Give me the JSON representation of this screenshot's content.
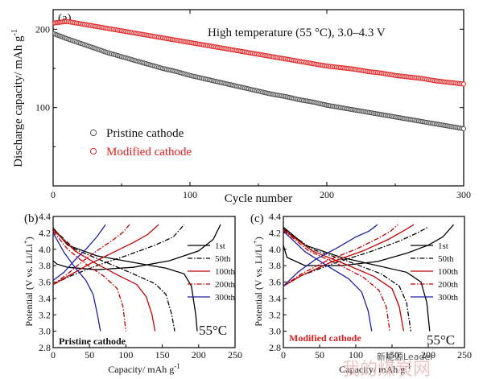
{
  "chart_data": [
    {
      "type": "scatter",
      "panel_label": "(a)",
      "annotation": "High temperature (55 °C), 3.0–4.3 V",
      "xlabel": "Cycle number",
      "ylabel": "Discharge capacity/ mAh g",
      "ylabel_sup": "-1",
      "xlim": [
        0,
        300
      ],
      "ylim": [
        0,
        225
      ],
      "xticks": [
        "0",
        "100",
        "200",
        "300"
      ],
      "yticks": [
        "100",
        "200"
      ],
      "legend_placement": "bottom-left",
      "series": [
        {
          "name": "Pristine cathode",
          "color": "#4a4a4a",
          "x": [
            1,
            10,
            20,
            30,
            40,
            50,
            60,
            70,
            80,
            90,
            100,
            110,
            120,
            130,
            140,
            150,
            160,
            170,
            180,
            190,
            200,
            210,
            220,
            230,
            240,
            250,
            260,
            270,
            280,
            290,
            300
          ],
          "y": [
            194,
            188,
            182,
            176,
            170,
            165,
            160,
            155,
            150,
            146,
            141,
            137,
            133,
            129,
            125,
            121,
            117,
            114,
            110,
            107,
            103,
            100,
            97,
            94,
            91,
            88,
            85,
            82,
            79,
            76,
            73
          ]
        },
        {
          "name": "Modified cathode",
          "color": "#e02020",
          "x": [
            1,
            10,
            20,
            30,
            40,
            50,
            60,
            70,
            80,
            90,
            100,
            110,
            120,
            130,
            140,
            150,
            160,
            170,
            180,
            190,
            200,
            210,
            220,
            230,
            240,
            250,
            260,
            270,
            280,
            290,
            300
          ],
          "y": [
            208,
            210,
            207,
            204,
            201,
            198,
            195,
            192,
            189,
            186,
            183,
            180,
            177,
            174,
            171,
            168,
            165,
            162,
            159,
            156,
            153,
            151,
            149,
            146,
            144,
            141,
            139,
            137,
            134,
            132,
            130
          ]
        }
      ]
    },
    {
      "type": "line",
      "panel_label": "(b)",
      "panel_note": "Pristine cathode",
      "temp_label": "55°C",
      "xlabel": "Capacity/ mAh g",
      "xlabel_sup": "-1",
      "ylabel": "Potential (V vs. Li/Li",
      "ylabel_sup": "+",
      "ylabel_end": ")",
      "xlim": [
        0,
        250
      ],
      "ylim": [
        2.8,
        4.4
      ],
      "xticks": [
        "0",
        "50",
        "100",
        "150",
        "200",
        "250"
      ],
      "yticks": [
        "2.8",
        "3.0",
        "3.2",
        "3.4",
        "3.6",
        "3.8",
        "4.0",
        "4.2",
        "4.4"
      ],
      "legend_placement": "top-right",
      "series": [
        {
          "name": "1st",
          "color": "#000000",
          "dash": "",
          "charge": [
            [
              0,
              3.86
            ],
            [
              5,
              3.82
            ],
            [
              20,
              3.78
            ],
            [
              60,
              3.75
            ],
            [
              110,
              3.78
            ],
            [
              160,
              3.86
            ],
            [
              200,
              3.98
            ],
            [
              220,
              4.12
            ],
            [
              230,
              4.3
            ]
          ],
          "discharge": [
            [
              0,
              4.26
            ],
            [
              20,
              4.05
            ],
            [
              60,
              3.92
            ],
            [
              110,
              3.84
            ],
            [
              155,
              3.77
            ],
            [
              180,
              3.7
            ],
            [
              190,
              3.55
            ],
            [
              196,
              3.2
            ],
            [
              198,
              3.0
            ]
          ]
        },
        {
          "name": "50th",
          "color": "#000000",
          "dash": "6,2,1.5,2",
          "charge": [
            [
              0,
              3.57
            ],
            [
              20,
              3.66
            ],
            [
              60,
              3.8
            ],
            [
              100,
              3.92
            ],
            [
              140,
              4.05
            ],
            [
              165,
              4.15
            ],
            [
              180,
              4.3
            ]
          ],
          "discharge": [
            [
              0,
              4.25
            ],
            [
              30,
              4.0
            ],
            [
              70,
              3.85
            ],
            [
              110,
              3.7
            ],
            [
              140,
              3.58
            ],
            [
              155,
              3.45
            ],
            [
              163,
              3.2
            ],
            [
              167,
              3.0
            ]
          ]
        },
        {
          "name": "100th",
          "color": "#c00000",
          "dash": "",
          "charge": [
            [
              0,
              3.57
            ],
            [
              20,
              3.67
            ],
            [
              50,
              3.82
            ],
            [
              80,
              3.95
            ],
            [
              110,
              4.08
            ],
            [
              130,
              4.18
            ],
            [
              145,
              4.3
            ]
          ],
          "discharge": [
            [
              0,
              4.24
            ],
            [
              30,
              3.98
            ],
            [
              60,
              3.82
            ],
            [
              90,
              3.68
            ],
            [
              115,
              3.57
            ],
            [
              128,
              3.42
            ],
            [
              136,
              3.2
            ],
            [
              140,
              3.0
            ]
          ]
        },
        {
          "name": "200th",
          "color": "#c00000",
          "dash": "6,2,1.5,2",
          "charge": [
            [
              0,
              3.57
            ],
            [
              20,
              3.7
            ],
            [
              40,
              3.85
            ],
            [
              60,
              3.98
            ],
            [
              80,
              4.1
            ],
            [
              95,
              4.2
            ],
            [
              105,
              4.3
            ]
          ],
          "discharge": [
            [
              0,
              4.22
            ],
            [
              20,
              4.0
            ],
            [
              45,
              3.82
            ],
            [
              70,
              3.67
            ],
            [
              88,
              3.52
            ],
            [
              96,
              3.3
            ],
            [
              100,
              3.0
            ]
          ]
        },
        {
          "name": "300th",
          "color": "#2020a0",
          "dash": "",
          "charge": [
            [
              0,
              3.62
            ],
            [
              15,
              3.72
            ],
            [
              30,
              3.87
            ],
            [
              45,
              4.0
            ],
            [
              60,
              4.15
            ],
            [
              72,
              4.3
            ]
          ],
          "discharge": [
            [
              0,
              4.2
            ],
            [
              15,
              3.96
            ],
            [
              30,
              3.78
            ],
            [
              45,
              3.62
            ],
            [
              55,
              3.45
            ],
            [
              61,
              3.2
            ],
            [
              65,
              3.0
            ]
          ]
        }
      ]
    },
    {
      "type": "line",
      "panel_label": "(c)",
      "panel_note": "Modified cathode",
      "temp_label": "55°C",
      "xlabel": "Capacity/ mAh g",
      "xlabel_sup": "-1",
      "ylabel": "Potential (V vs. Li/Li",
      "ylabel_sup": "+",
      "ylabel_end": ")",
      "xlim": [
        0,
        250
      ],
      "ylim": [
        2.8,
        4.4
      ],
      "xticks": [
        "0",
        "50",
        "100",
        "150",
        "200",
        "250"
      ],
      "yticks": [
        "2.8",
        "3.0",
        "3.2",
        "3.4",
        "3.6",
        "3.8",
        "4.0",
        "4.2",
        "4.4"
      ],
      "legend_placement": "top-right",
      "series": [
        {
          "name": "1st",
          "color": "#000000",
          "dash": "",
          "charge": [
            [
              0,
              4.05
            ],
            [
              5,
              3.9
            ],
            [
              30,
              3.8
            ],
            [
              80,
              3.8
            ],
            [
              130,
              3.85
            ],
            [
              170,
              3.95
            ],
            [
              200,
              4.05
            ],
            [
              220,
              4.15
            ],
            [
              235,
              4.3
            ]
          ],
          "discharge": [
            [
              0,
              4.27
            ],
            [
              30,
              4.05
            ],
            [
              80,
              3.9
            ],
            [
              130,
              3.8
            ],
            [
              170,
              3.72
            ],
            [
              190,
              3.6
            ],
            [
              198,
              3.35
            ],
            [
              202,
              3.0
            ]
          ]
        },
        {
          "name": "50th",
          "color": "#000000",
          "dash": "6,2,1.5,2",
          "charge": [
            [
              0,
              3.55
            ],
            [
              25,
              3.68
            ],
            [
              70,
              3.83
            ],
            [
              120,
              3.97
            ],
            [
              160,
              4.1
            ],
            [
              185,
              4.2
            ],
            [
              200,
              4.27
            ]
          ],
          "discharge": [
            [
              0,
              4.25
            ],
            [
              40,
              4.0
            ],
            [
              90,
              3.85
            ],
            [
              135,
              3.7
            ],
            [
              160,
              3.55
            ],
            [
              170,
              3.35
            ],
            [
              176,
              3.0
            ]
          ]
        },
        {
          "name": "100th",
          "color": "#c00000",
          "dash": "",
          "charge": [
            [
              0,
              3.55
            ],
            [
              25,
              3.68
            ],
            [
              65,
              3.84
            ],
            [
              110,
              3.98
            ],
            [
              145,
              4.12
            ],
            [
              165,
              4.22
            ],
            [
              180,
              4.3
            ]
          ],
          "discharge": [
            [
              0,
              4.24
            ],
            [
              40,
              3.98
            ],
            [
              85,
              3.82
            ],
            [
              125,
              3.67
            ],
            [
              150,
              3.52
            ],
            [
              160,
              3.3
            ],
            [
              166,
              3.0
            ]
          ]
        },
        {
          "name": "200th",
          "color": "#c00000",
          "dash": "6,2,1.5,2",
          "charge": [
            [
              0,
              3.55
            ],
            [
              25,
              3.7
            ],
            [
              60,
              3.86
            ],
            [
              100,
              4.0
            ],
            [
              130,
              4.13
            ],
            [
              148,
              4.22
            ],
            [
              158,
              4.3
            ]
          ],
          "discharge": [
            [
              0,
              4.23
            ],
            [
              35,
              3.98
            ],
            [
              75,
              3.82
            ],
            [
              110,
              3.66
            ],
            [
              132,
              3.5
            ],
            [
              142,
              3.3
            ],
            [
              147,
              3.0
            ]
          ]
        },
        {
          "name": "300th",
          "color": "#2020a0",
          "dash": "",
          "charge": [
            [
              0,
              3.55
            ],
            [
              20,
              3.72
            ],
            [
              45,
              3.88
            ],
            [
              75,
              4.02
            ],
            [
              100,
              4.15
            ],
            [
              118,
              4.22
            ],
            [
              130,
              4.3
            ]
          ],
          "discharge": [
            [
              0,
              4.22
            ],
            [
              30,
              3.97
            ],
            [
              60,
              3.8
            ],
            [
              90,
              3.64
            ],
            [
              108,
              3.48
            ],
            [
              117,
              3.25
            ],
            [
              122,
              3.0
            ]
          ]
        }
      ]
    }
  ],
  "watermark": {
    "text": "我的煤炭网",
    "handle": "新能源Leader"
  }
}
